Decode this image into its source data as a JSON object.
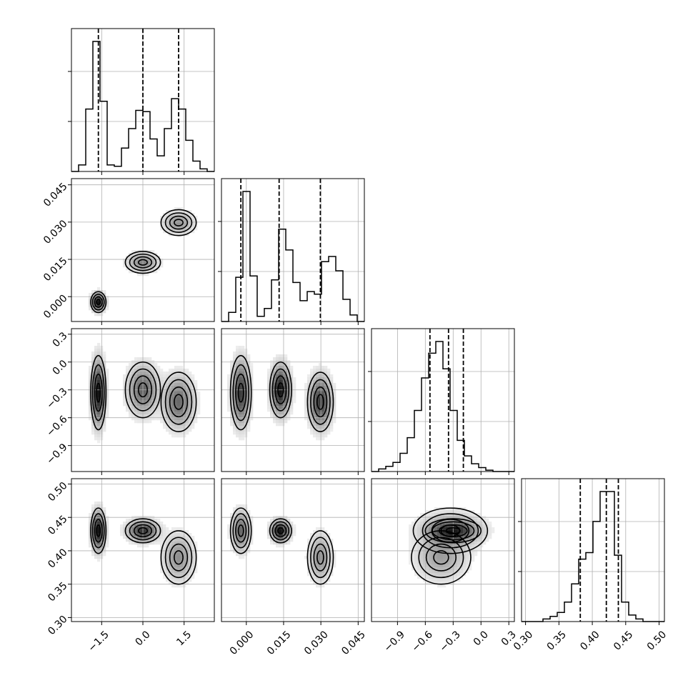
{
  "chart_data": {
    "type": "corner",
    "params": [
      {
        "range": [
          -2.6,
          2.6
        ],
        "ticks": [
          -1.5,
          0.0,
          1.5
        ],
        "tick_labels": [
          "−1.5",
          "0.0",
          "1.5"
        ],
        "quantiles": [
          -1.62,
          0.0,
          1.3
        ],
        "hist": [
          0,
          0.05,
          0.48,
          1.0,
          0.54,
          0.05,
          0.04,
          0.18,
          0.33,
          0.47,
          0.46,
          0.25,
          0.12,
          0.33,
          0.56,
          0.48,
          0.24,
          0.08,
          0.02,
          0.0
        ]
      },
      {
        "range": [
          -0.01,
          0.0475
        ],
        "ticks": [
          0.0,
          0.015,
          0.03,
          0.045
        ],
        "tick_labels": [
          "0.000",
          "0.015",
          "0.030",
          "0.045"
        ],
        "quantiles": [
          -0.0022,
          0.0132,
          0.0298
        ],
        "hist": [
          0,
          0.07,
          0.34,
          1.0,
          0.35,
          0.04,
          0.1,
          0.32,
          0.71,
          0.55,
          0.3,
          0.16,
          0.23,
          0.21,
          0.46,
          0.5,
          0.39,
          0.17,
          0.05,
          0.0
        ]
      },
      {
        "range": [
          -1.18,
          0.36
        ],
        "ticks": [
          -0.9,
          -0.6,
          -0.3,
          0.0,
          0.3
        ],
        "tick_labels": [
          "−0.9",
          "−0.6",
          "−0.3",
          "0.0",
          "0.3"
        ],
        "quantiles": [
          -0.55,
          -0.35,
          -0.19
        ],
        "hist": [
          0,
          0.02,
          0.04,
          0.07,
          0.14,
          0.26,
          0.47,
          0.72,
          0.91,
          1.0,
          0.79,
          0.47,
          0.24,
          0.12,
          0.06,
          0.03,
          0.01,
          0.0,
          0.0,
          0.0
        ]
      },
      {
        "range": [
          0.294,
          0.508
        ],
        "ticks": [
          0.3,
          0.35,
          0.4,
          0.45,
          0.5
        ],
        "tick_labels": [
          "0.30",
          "0.35",
          "0.40",
          "0.45",
          "0.50"
        ],
        "quantiles": [
          0.382,
          0.421,
          0.439
        ],
        "hist": [
          0,
          0.0,
          0.0,
          0.02,
          0.04,
          0.07,
          0.15,
          0.29,
          0.48,
          0.53,
          0.77,
          1.0,
          1.0,
          0.51,
          0.15,
          0.05,
          0.02,
          0.0,
          0.0,
          0.0
        ]
      }
    ],
    "clusters": [
      {
        "mean": [
          -1.62,
          -0.0022,
          -0.33,
          0.43
        ],
        "sd": [
          0.14,
          0.0021,
          0.2,
          0.017
        ]
      },
      {
        "mean": [
          0.0,
          0.0138,
          -0.3,
          0.43
        ],
        "sd": [
          0.32,
          0.0022,
          0.15,
          0.009
        ]
      },
      {
        "mean": [
          1.3,
          0.0298,
          -0.43,
          0.39
        ],
        "sd": [
          0.32,
          0.0026,
          0.16,
          0.02
        ]
      }
    ]
  }
}
